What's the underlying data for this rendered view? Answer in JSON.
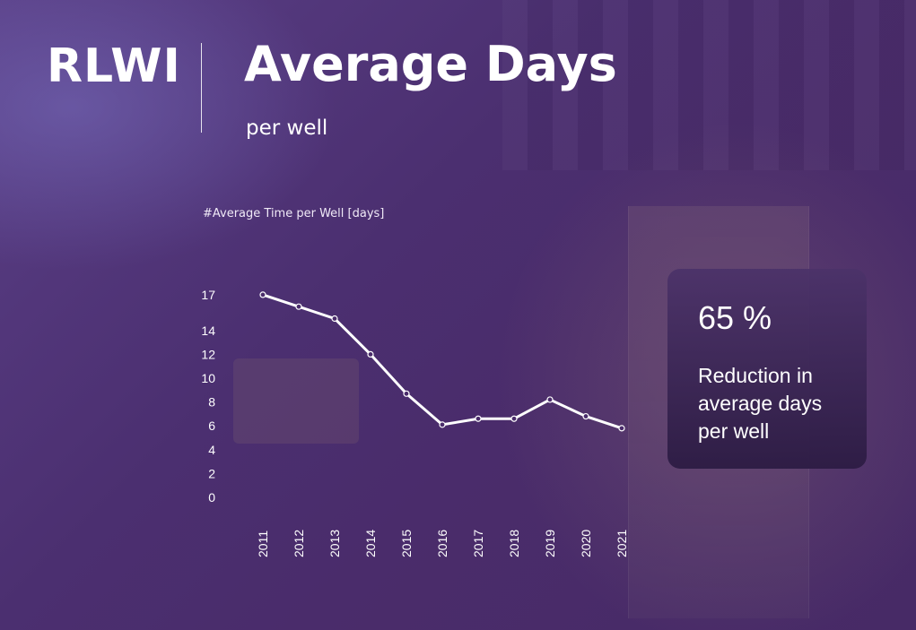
{
  "header": {
    "brand": "RLWI",
    "title": "Average Days",
    "subtitle": "per well"
  },
  "chart_label": "#Average Time per Well [days]",
  "chart_data": {
    "type": "line",
    "title": "#Average Time per Well [days]",
    "x": [
      "2011",
      "2012",
      "2013",
      "2014",
      "2015",
      "2016",
      "2017",
      "2018",
      "2019",
      "2020",
      "2021"
    ],
    "y": [
      17,
      16,
      15,
      12,
      8.7,
      6.1,
      6.6,
      6.6,
      8.2,
      6.8,
      5.8
    ],
    "yticks": [
      0,
      2,
      4,
      6,
      8,
      10,
      12,
      14,
      17
    ],
    "ylim": [
      0,
      17
    ],
    "grid": false,
    "line_color": "#ffffff"
  },
  "kpi": {
    "value": "65 %",
    "text": "Reduction in average days per well"
  }
}
